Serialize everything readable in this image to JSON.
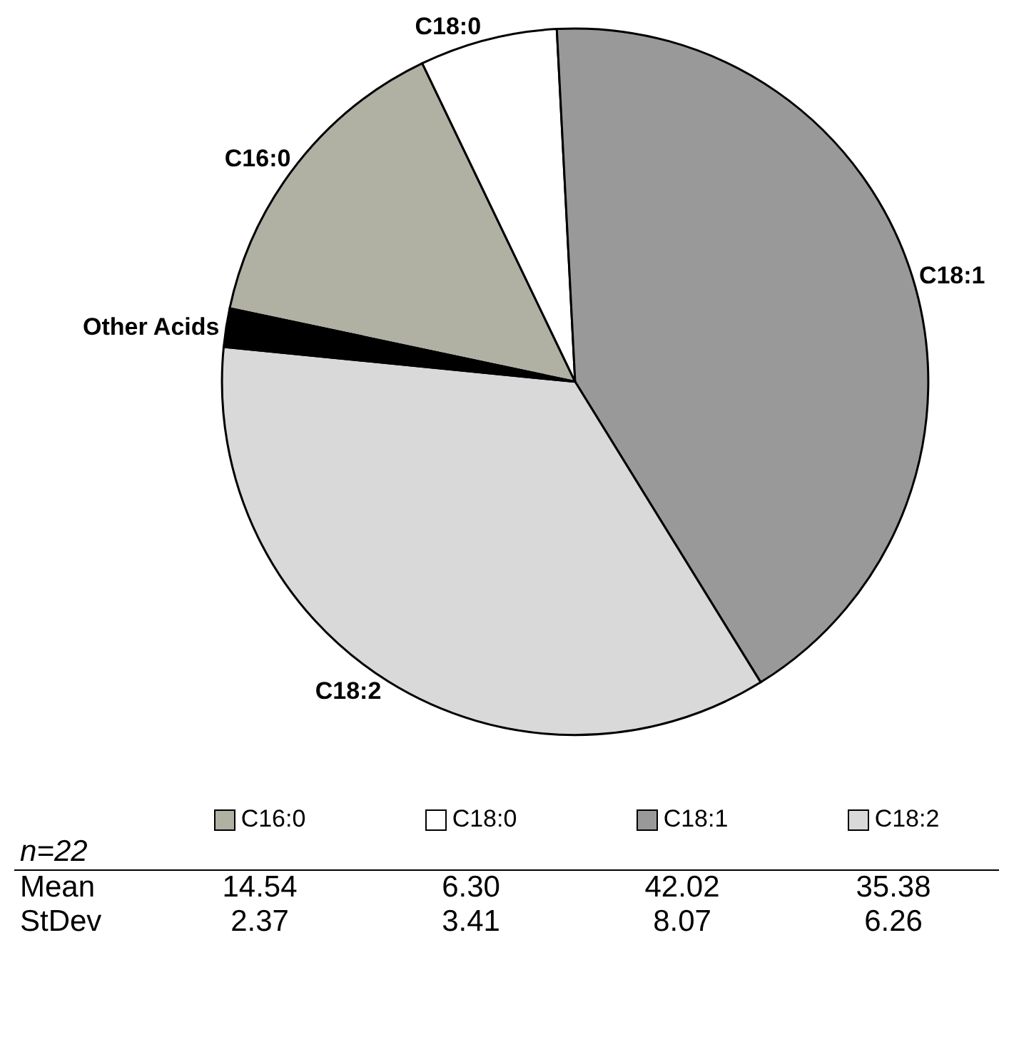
{
  "chart_data": [
    {
      "type": "pie",
      "categories": [
        "C16:0",
        "C18:0",
        "C18:1",
        "C18:2",
        "Other Acids"
      ],
      "values": [
        14.54,
        6.3,
        42.02,
        35.38,
        1.76
      ],
      "colors": [
        "#b0b0a3",
        "#ffffff",
        "#999999",
        "#d9d9d9",
        "#000000"
      ]
    },
    {
      "type": "other",
      "categories": [
        "C16:0",
        "C18:0",
        "C18:1",
        "C18:2"
      ],
      "colors": [
        "#b0b0a3",
        "#ffffff",
        "#999999",
        "#d9d9d9"
      ],
      "series": [
        {
          "name": "Mean",
          "values": [
            14.54,
            6.3,
            42.02,
            35.38
          ],
          "value_labels": [
            "14.54",
            "6.30",
            "42.02",
            "35.38"
          ]
        },
        {
          "name": "StDev",
          "values": [
            2.37,
            3.41,
            8.07,
            6.26
          ]
        }
      ],
      "data_labels": true,
      "annotations": [
        "n=22"
      ]
    }
  ]
}
